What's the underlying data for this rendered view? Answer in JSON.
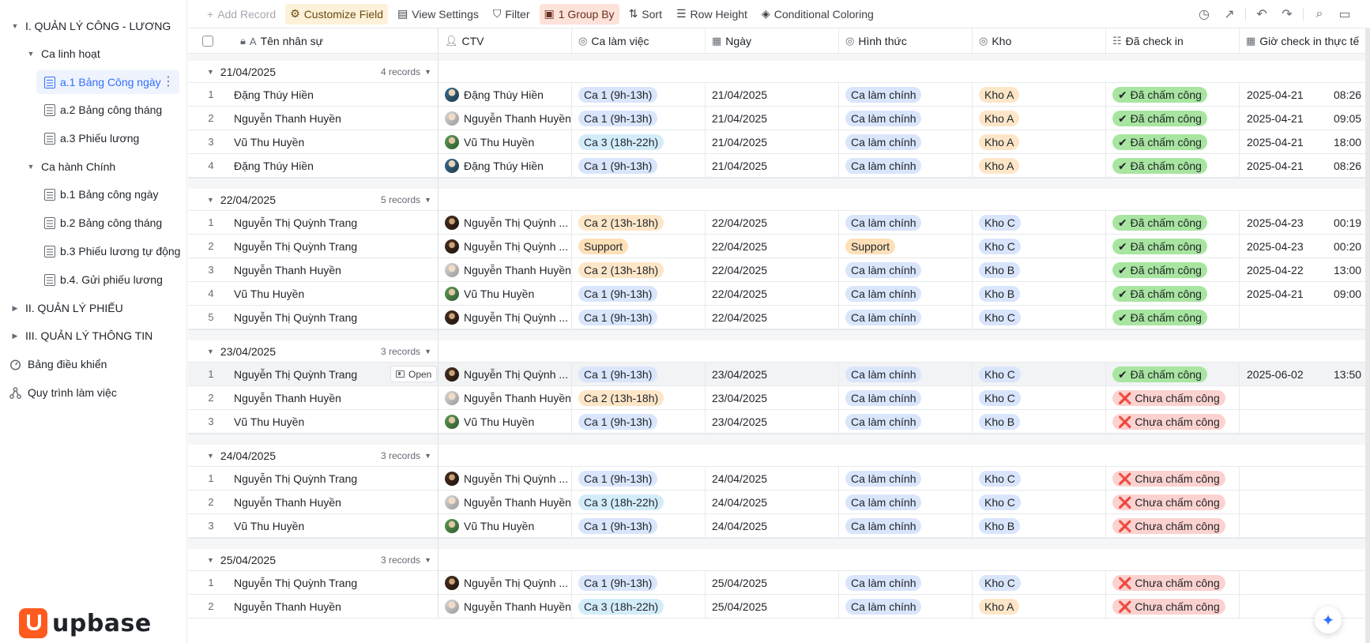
{
  "sidebar": {
    "items": [
      {
        "label": "I. QUẢN LÝ CÔNG - LƯƠNG",
        "level": 0,
        "kind": "folder-open"
      },
      {
        "label": "Ca linh hoạt",
        "level": 1,
        "kind": "folder-open"
      },
      {
        "label": "a.1 Bảng Công ngày",
        "level": 2,
        "kind": "table",
        "active": true
      },
      {
        "label": "a.2 Bảng công tháng",
        "level": 2,
        "kind": "table"
      },
      {
        "label": "a.3 Phiếu lương",
        "level": 2,
        "kind": "table"
      },
      {
        "label": "Ca hành Chính",
        "level": 1,
        "kind": "folder-open"
      },
      {
        "label": "b.1 Bảng công ngày",
        "level": 2,
        "kind": "doc"
      },
      {
        "label": "b.2 Bảng công tháng",
        "level": 2,
        "kind": "doc"
      },
      {
        "label": "b.3 Phiếu lương tự động",
        "level": 2,
        "kind": "doc"
      },
      {
        "label": "b.4. Gửi phiếu lương",
        "level": 2,
        "kind": "doc"
      },
      {
        "label": "II. QUẢN LÝ PHIẾU",
        "level": 0,
        "kind": "folder-closed"
      },
      {
        "label": "III. QUẢN LÝ THÔNG TIN",
        "level": 0,
        "kind": "folder-closed"
      },
      {
        "label": "Bảng điều khiển",
        "level": 0,
        "kind": "dashboard"
      },
      {
        "label": "Quy trình làm việc",
        "level": 0,
        "kind": "workflow"
      }
    ],
    "logo_text": "upbase"
  },
  "toolbar": {
    "add_record": "Add Record",
    "customize_field": "Customize Field",
    "view_settings": "View Settings",
    "filter": "Filter",
    "group_by": "1 Group By",
    "sort": "Sort",
    "row_height": "Row Height",
    "conditional_coloring": "Conditional Coloring"
  },
  "columns": {
    "name": "Tên nhân sự",
    "ctv": "CTV",
    "shift": "Ca làm việc",
    "date": "Ngày",
    "type": "Hình thức",
    "warehouse": "Kho",
    "checked": "Đã check in",
    "checkin_time": "Giờ check in thực tế"
  },
  "open_label": "Open",
  "colors": {
    "accent": "#3370ff",
    "tag_blue": "#d9e5fb",
    "tag_orange": "#fde6c8",
    "tag_lightblue": "#d3ecf9",
    "tag_support": "#fde0b8",
    "tag_green": "#a8e5a0",
    "tag_red": "#fbd2cf"
  },
  "groups": [
    {
      "title": "21/04/2025",
      "count": "4 records",
      "rows": [
        {
          "n": "1",
          "name": "Đặng Thúy Hiền",
          "ctv": "Đặng Thúy Hiền",
          "av": "a",
          "shift": "Ca 1 (9h-13h)",
          "date": "21/04/2025",
          "type": "Ca làm chính",
          "kho": "Kho A",
          "checked": "✔ Đã chấm công",
          "cd": "2025-04-21",
          "ct": "08:26"
        },
        {
          "n": "2",
          "name": "Nguyễn Thanh Huyền",
          "ctv": "Nguyễn Thanh Huyền",
          "av": "b",
          "shift": "Ca 1 (9h-13h)",
          "date": "21/04/2025",
          "type": "Ca làm chính",
          "kho": "Kho A",
          "checked": "✔ Đã chấm công",
          "cd": "2025-04-21",
          "ct": "09:05"
        },
        {
          "n": "3",
          "name": "Vũ Thu Huyền",
          "ctv": "Vũ Thu Huyền",
          "av": "c",
          "shift": "Ca 3 (18h-22h)",
          "date": "21/04/2025",
          "type": "Ca làm chính",
          "kho": "Kho A",
          "checked": "✔ Đã chấm công",
          "cd": "2025-04-21",
          "ct": "18:00"
        },
        {
          "n": "4",
          "name": "Đặng Thúy Hiền",
          "ctv": "Đặng Thúy Hiền",
          "av": "a",
          "shift": "Ca 1 (9h-13h)",
          "date": "21/04/2025",
          "type": "Ca làm chính",
          "kho": "Kho A",
          "checked": "✔ Đã chấm công",
          "cd": "2025-04-21",
          "ct": "08:26"
        }
      ]
    },
    {
      "title": "22/04/2025",
      "count": "5 records",
      "rows": [
        {
          "n": "1",
          "name": "Nguyễn Thị Quỳnh Trang",
          "ctv": "Nguyễn Thị Quỳnh ...",
          "av": "d",
          "shift": "Ca 2 (13h-18h)",
          "date": "22/04/2025",
          "type": "Ca làm chính",
          "kho": "Kho C",
          "checked": "✔ Đã chấm công",
          "cd": "2025-04-23",
          "ct": "00:19"
        },
        {
          "n": "2",
          "name": "Nguyễn Thị Quỳnh Trang",
          "ctv": "Nguyễn Thị Quỳnh ...",
          "av": "d",
          "shift": "Support",
          "date": "22/04/2025",
          "type": "Support",
          "kho": "Kho C",
          "checked": "✔ Đã chấm công",
          "cd": "2025-04-23",
          "ct": "00:20"
        },
        {
          "n": "3",
          "name": "Nguyễn Thanh Huyền",
          "ctv": "Nguyễn Thanh Huyền",
          "av": "b",
          "shift": "Ca 2 (13h-18h)",
          "date": "22/04/2025",
          "type": "Ca làm chính",
          "kho": "Kho B",
          "checked": "✔ Đã chấm công",
          "cd": "2025-04-22",
          "ct": "13:00"
        },
        {
          "n": "4",
          "name": "Vũ Thu Huyền",
          "ctv": "Vũ Thu Huyền",
          "av": "c",
          "shift": "Ca 1 (9h-13h)",
          "date": "22/04/2025",
          "type": "Ca làm chính",
          "kho": "Kho B",
          "checked": "✔ Đã chấm công",
          "cd": "2025-04-21",
          "ct": "09:00"
        },
        {
          "n": "5",
          "name": "Nguyễn Thị Quỳnh Trang",
          "ctv": "Nguyễn Thị Quỳnh ...",
          "av": "d",
          "shift": "Ca 1 (9h-13h)",
          "date": "22/04/2025",
          "type": "Ca làm chính",
          "kho": "Kho C",
          "checked": "✔ Đã chấm công",
          "cd": "",
          "ct": ""
        }
      ]
    },
    {
      "title": "23/04/2025",
      "count": "3 records",
      "rows": [
        {
          "n": "1",
          "name": "Nguyễn Thị Quỳnh Trang",
          "ctv": "Nguyễn Thị Quỳnh ...",
          "av": "d",
          "shift": "Ca 1 (9h-13h)",
          "date": "23/04/2025",
          "type": "Ca làm chính",
          "kho": "Kho C",
          "checked": "✔ Đã chấm công",
          "cd": "2025-06-02",
          "ct": "13:50",
          "hover": true
        },
        {
          "n": "2",
          "name": "Nguyễn Thanh Huyền",
          "ctv": "Nguyễn Thanh Huyền",
          "av": "b",
          "shift": "Ca 2 (13h-18h)",
          "date": "23/04/2025",
          "type": "Ca làm chính",
          "kho": "Kho C",
          "checked": "❌ Chưa chấm công",
          "cd": "",
          "ct": ""
        },
        {
          "n": "3",
          "name": "Vũ Thu Huyền",
          "ctv": "Vũ Thu Huyền",
          "av": "c",
          "shift": "Ca 1 (9h-13h)",
          "date": "23/04/2025",
          "type": "Ca làm chính",
          "kho": "Kho B",
          "checked": "❌ Chưa chấm công",
          "cd": "",
          "ct": ""
        }
      ]
    },
    {
      "title": "24/04/2025",
      "count": "3 records",
      "rows": [
        {
          "n": "1",
          "name": "Nguyễn Thị Quỳnh Trang",
          "ctv": "Nguyễn Thị Quỳnh ...",
          "av": "d",
          "shift": "Ca 1 (9h-13h)",
          "date": "24/04/2025",
          "type": "Ca làm chính",
          "kho": "Kho C",
          "checked": "❌ Chưa chấm công",
          "cd": "",
          "ct": ""
        },
        {
          "n": "2",
          "name": "Nguyễn Thanh Huyền",
          "ctv": "Nguyễn Thanh Huyền",
          "av": "b",
          "shift": "Ca 3 (18h-22h)",
          "date": "24/04/2025",
          "type": "Ca làm chính",
          "kho": "Kho C",
          "checked": "❌ Chưa chấm công",
          "cd": "",
          "ct": ""
        },
        {
          "n": "3",
          "name": "Vũ Thu Huyền",
          "ctv": "Vũ Thu Huyền",
          "av": "c",
          "shift": "Ca 1 (9h-13h)",
          "date": "24/04/2025",
          "type": "Ca làm chính",
          "kho": "Kho B",
          "checked": "❌ Chưa chấm công",
          "cd": "",
          "ct": ""
        }
      ]
    },
    {
      "title": "25/04/2025",
      "count": "3 records",
      "rows": [
        {
          "n": "1",
          "name": "Nguyễn Thị Quỳnh Trang",
          "ctv": "Nguyễn Thị Quỳnh ...",
          "av": "d",
          "shift": "Ca 1 (9h-13h)",
          "date": "25/04/2025",
          "type": "Ca làm chính",
          "kho": "Kho C",
          "checked": "❌ Chưa chấm công",
          "cd": "",
          "ct": ""
        },
        {
          "n": "2",
          "name": "Nguyễn Thanh Huyền",
          "ctv": "Nguyễn Thanh Huyền",
          "av": "b",
          "shift": "Ca 3 (18h-22h)",
          "date": "25/04/2025",
          "type": "Ca làm chính",
          "kho": "Kho A",
          "checked": "❌ Chưa chấm công",
          "cd": "",
          "ct": ""
        }
      ]
    }
  ]
}
